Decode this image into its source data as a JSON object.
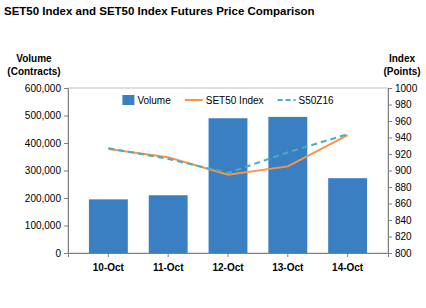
{
  "chart_data": {
    "type": "bar",
    "title": "SET50 Index and SET50 Index Futures Price Comparison",
    "ylabel": [
      "Volume",
      "(Contracts)"
    ],
    "y2label": [
      "Index",
      "(Points)"
    ],
    "categories": [
      "10-Oct",
      "11-Oct",
      "12-Oct",
      "13-Oct",
      "14-Oct"
    ],
    "series": [
      {
        "name": "Volume",
        "type": "bar",
        "color": "#3a7fc1",
        "values": [
          195000,
          210000,
          490000,
          495000,
          272000
        ]
      },
      {
        "name": "SET50 Index",
        "type": "line",
        "axis": "y2",
        "color": "#f79646",
        "line_style": "solid",
        "values": [
          926,
          916,
          895,
          905,
          943
        ]
      },
      {
        "name": "S50Z16",
        "type": "line",
        "axis": "y2",
        "color": "#4bacc6",
        "line_style": "dashed",
        "values": [
          927,
          914,
          897,
          922,
          944
        ]
      }
    ],
    "ylim": [
      0,
      600000
    ],
    "yticks": [
      0,
      {
        "value": 100000,
        "label": "100,000"
      },
      {
        "value": 200000,
        "label": "200,000"
      },
      {
        "value": 300000,
        "label": "300,000"
      },
      {
        "value": 400000,
        "label": "400,000"
      },
      {
        "value": 500000,
        "label": "500,000"
      },
      {
        "value": 600000,
        "label": "600,000"
      }
    ],
    "y2lim": [
      800,
      1000
    ],
    "y2ticks": [
      800,
      820,
      840,
      860,
      880,
      900,
      920,
      940,
      960,
      980,
      1000
    ],
    "grid": false,
    "legend": "top"
  }
}
